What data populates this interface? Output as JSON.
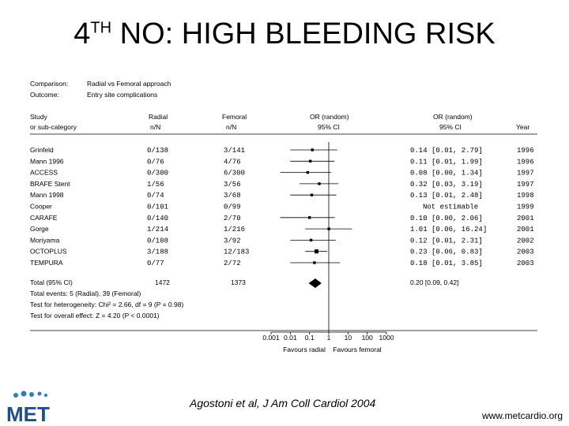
{
  "slide": {
    "title_main": "4",
    "title_sup": "TH",
    "title_rest": " NO: HIGH BLEEDING RISK",
    "citation": "Agostoni et al, J Am Coll Cardiol 2004",
    "url": "www.metcardio.org",
    "logo_text": "MET"
  },
  "forest": {
    "comparison_label": "Comparison:",
    "comparison_value": "Radial vs Femoral approach",
    "outcome_label": "Outcome:",
    "outcome_value": "Entry site complications",
    "col_study_1": "Study",
    "col_study_2": "or sub-category",
    "col_radial_1": "Radial",
    "col_radial_2": "n/N",
    "col_femoral_1": "Femoral",
    "col_femoral_2": "n/N",
    "col_or_plot_1": "OR (random)",
    "col_or_plot_2": "95% CI",
    "col_or_text_1": "OR (random)",
    "col_or_text_2": "95% CI",
    "col_year": "Year",
    "total_label": "Total (95% CI)",
    "total_radial": "1472",
    "total_femoral": "1373",
    "total_ci_text": "0.20 [0.09, 0.42]",
    "total_events": "Total events: 5 (Radial), 39 (Femoral)",
    "heterogeneity": "Test for heterogeneity: Chi² = 2.66, df = 9 (P = 0.98)",
    "overall_effect": "Test for overall effect: Z = 4.20 (P < 0.0001)",
    "favours_left": "Favours radial",
    "favours_right": "Favours femoral"
  },
  "chart_data": {
    "type": "forest",
    "x_scale": "log",
    "xlim": [
      0.001,
      1000
    ],
    "x_ticks": [
      {
        "v": 0.001,
        "label": "0.001"
      },
      {
        "v": 0.01,
        "label": "0.01"
      },
      {
        "v": 0.1,
        "label": "0.1"
      },
      {
        "v": 1,
        "label": "1"
      },
      {
        "v": 10,
        "label": "10"
      },
      {
        "v": 100,
        "label": "100"
      },
      {
        "v": 1000,
        "label": "1000"
      }
    ],
    "studies": [
      {
        "name": "Grinfeld",
        "radial": "0/138",
        "femoral": "3/141",
        "or": 0.14,
        "lo": 0.01,
        "hi": 2.79,
        "ci_text": "0.14 [0.01, 2.79]",
        "year": "1996"
      },
      {
        "name": "Mann 1996",
        "radial": "0/76",
        "femoral": "4/76",
        "or": 0.11,
        "lo": 0.01,
        "hi": 1.99,
        "ci_text": "0.11 [0.01, 1.99]",
        "year": "1996"
      },
      {
        "name": "ACCESS",
        "radial": "0/300",
        "femoral": "6/300",
        "or": 0.08,
        "lo": 0.0,
        "hi": 1.34,
        "ci_text": "0.08 [0.00, 1.34]",
        "year": "1997"
      },
      {
        "name": "BRAFE Stent",
        "radial": "1/56",
        "femoral": "3/56",
        "or": 0.32,
        "lo": 0.03,
        "hi": 3.19,
        "ci_text": "0.32 [0.03, 3.19]",
        "year": "1997"
      },
      {
        "name": "Mann 1998",
        "radial": "0/74",
        "femoral": "3/68",
        "or": 0.13,
        "lo": 0.01,
        "hi": 2.48,
        "ci_text": "0.13 [0.01, 2.48]",
        "year": "1998"
      },
      {
        "name": "Cooper",
        "radial": "0/101",
        "femoral": "0/99",
        "or": null,
        "lo": null,
        "hi": null,
        "ci_text": "Not estimable",
        "year": "1999"
      },
      {
        "name": "CARAFE",
        "radial": "0/140",
        "femoral": "2/70",
        "or": 0.1,
        "lo": 0.0,
        "hi": 2.06,
        "ci_text": "0.10 [0.00, 2.06]",
        "year": "2001"
      },
      {
        "name": "Gorge",
        "radial": "1/214",
        "femoral": "1/216",
        "or": 1.01,
        "lo": 0.06,
        "hi": 16.24,
        "ci_text": "1.01 [0.06, 16.24]",
        "year": "2001"
      },
      {
        "name": "Moriyama",
        "radial": "0/108",
        "femoral": "3/92",
        "or": 0.12,
        "lo": 0.01,
        "hi": 2.31,
        "ci_text": "0.12 [0.01, 2.31]",
        "year": "2002"
      },
      {
        "name": "OCTOPLUS",
        "radial": "3/188",
        "femoral": "12/183",
        "or": 0.23,
        "lo": 0.06,
        "hi": 0.83,
        "ci_text": "0.23 [0.06, 0.83]",
        "year": "2003"
      },
      {
        "name": "TEMPURA",
        "radial": "0/77",
        "femoral": "2/72",
        "or": 0.18,
        "lo": 0.01,
        "hi": 3.85,
        "ci_text": "0.18 [0.01, 3.85]",
        "year": "2003"
      }
    ],
    "total": {
      "or": 0.2,
      "lo": 0.09,
      "hi": 0.42
    }
  }
}
